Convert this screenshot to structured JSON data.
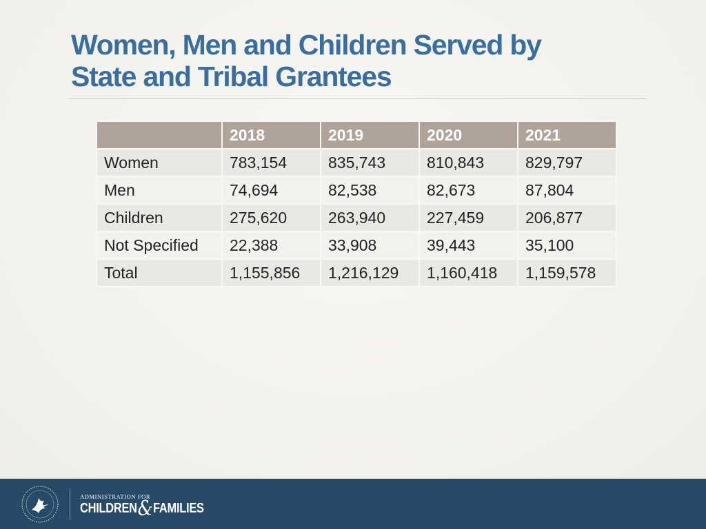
{
  "slide": {
    "title_line1": "Women, Men and Children Served by",
    "title_line2": "State and Tribal Grantees"
  },
  "table": {
    "headers": [
      "",
      "2018",
      "2019",
      "2020",
      "2021"
    ],
    "rows": [
      [
        "Women",
        "783,154",
        "835,743",
        "810,843",
        "829,797"
      ],
      [
        "Men",
        "74,694",
        "82,538",
        "82,673",
        "87,804"
      ],
      [
        "Children",
        "275,620",
        "263,940",
        "227,459",
        "206,877"
      ],
      [
        "Not Specified",
        "22,388",
        "33,908",
        "39,443",
        "35,100"
      ],
      [
        "Total",
        "1,155,856",
        "1,216,129",
        "1,160,418",
        "1,159,578"
      ]
    ]
  },
  "footer": {
    "agency_line1": "ADMINISTRATION FOR",
    "agency_part1": "CHILDREN",
    "agency_amp": "&",
    "agency_part2": "FAMILIES",
    "seal_icon": "hhs-eagle-seal-icon"
  },
  "colors": {
    "title": "#3a6e9f",
    "header_bg": "#b0a49a",
    "footer_bg": "#264a67"
  }
}
